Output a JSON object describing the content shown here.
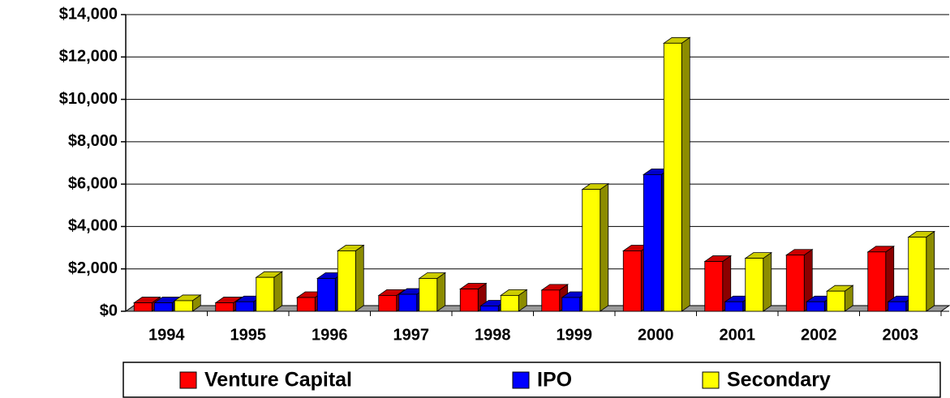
{
  "chart_data": {
    "type": "bar3d",
    "categories": [
      "1994",
      "1995",
      "1996",
      "1997",
      "1998",
      "1999",
      "2000",
      "2001",
      "2002",
      "2003"
    ],
    "series": [
      {
        "name": "Venture Capital",
        "color": "#ff0000",
        "values": [
          400,
          400,
          650,
          750,
          1050,
          1000,
          2850,
          2350,
          2650,
          2800
        ]
      },
      {
        "name": "IPO",
        "color": "#0000ff",
        "values": [
          400,
          450,
          1550,
          800,
          250,
          650,
          6450,
          450,
          450,
          450
        ]
      },
      {
        "name": "Secondary",
        "color": "#ffff00",
        "values": [
          500,
          1600,
          2850,
          1550,
          750,
          5750,
          12650,
          2500,
          950,
          3500
        ]
      }
    ],
    "ylim": [
      0,
      14000
    ],
    "yticks": [
      {
        "value": 0,
        "label": "$0"
      },
      {
        "value": 2000,
        "label": "$2,000"
      },
      {
        "value": 4000,
        "label": "$4,000"
      },
      {
        "value": 6000,
        "label": "$6,000"
      },
      {
        "value": 8000,
        "label": "$8,000"
      },
      {
        "value": 10000,
        "label": "$10,000"
      },
      {
        "value": 12000,
        "label": "$12,000"
      },
      {
        "value": 14000,
        "label": "$14,000"
      }
    ],
    "grid": true
  }
}
